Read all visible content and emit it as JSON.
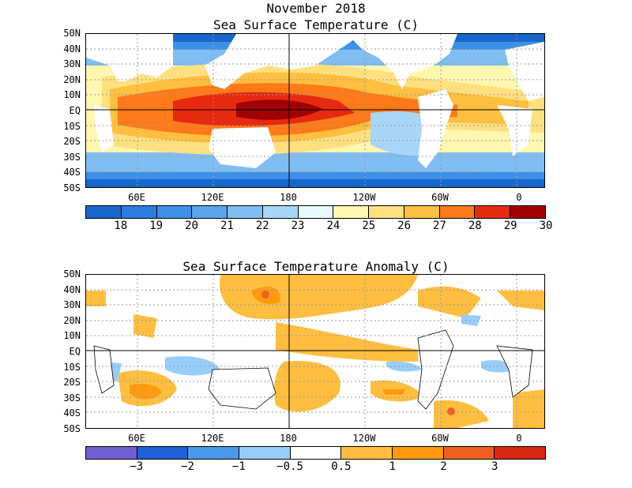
{
  "title": "November 2018",
  "panels": [
    {
      "title": "Sea Surface Temperature (C)",
      "lat_labels": [
        "50N",
        "40N",
        "30N",
        "20N",
        "10N",
        "EQ",
        "10S",
        "20S",
        "30S",
        "40S",
        "50S"
      ],
      "lon_labels": [
        "60E",
        "120E",
        "180",
        "120W",
        "60W",
        "0"
      ],
      "colorbar": {
        "colors": [
          "#1966cc",
          "#2b7de0",
          "#3d90e8",
          "#5aa5ee",
          "#80bdf2",
          "#a8d6f8",
          "#e6fbff",
          "#fff6b0",
          "#ffe080",
          "#ffbf40",
          "#ff7a1a",
          "#e62a10",
          "#a00000"
        ],
        "labels": [
          "18",
          "19",
          "20",
          "21",
          "22",
          "23",
          "24",
          "25",
          "26",
          "27",
          "28",
          "29",
          "30"
        ]
      }
    },
    {
      "title": "Sea Surface Temperature Anomaly (C)",
      "lat_labels": [
        "50N",
        "40N",
        "30N",
        "20N",
        "10N",
        "EQ",
        "10S",
        "20S",
        "30S",
        "40S",
        "50S"
      ],
      "lon_labels": [
        "60E",
        "120E",
        "180",
        "120W",
        "60W",
        "0"
      ],
      "colorbar": {
        "colors": [
          "#7060d0",
          "#2060d8",
          "#4a98ea",
          "#98cdf8",
          "#ffffff",
          "#ffbe40",
          "#ff9a10",
          "#f06020",
          "#d82810"
        ],
        "labels": [
          "−3",
          "−2",
          "−1",
          "−0.5",
          "0.5",
          "1",
          "2",
          "3"
        ]
      }
    }
  ]
}
